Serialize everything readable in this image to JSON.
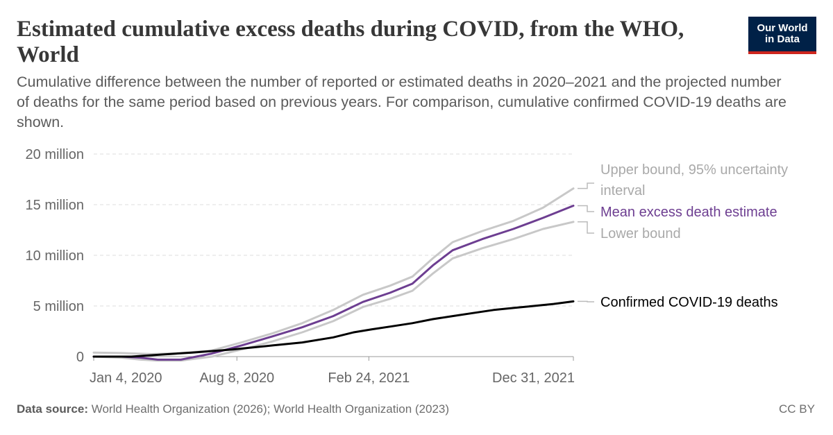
{
  "header": {
    "title": "Estimated cumulative excess deaths during COVID, from the WHO, World",
    "subtitle": "Cumulative difference between the number of reported or estimated deaths in 2020–2021 and the projected number of deaths for the same period based on previous years. For comparison, cumulative confirmed COVID-19 deaths are shown.",
    "logo_text": "Our World\nin Data"
  },
  "footer": {
    "source_label": "Data source:",
    "source_text": "World Health Organization (2026); World Health Organization (2023)",
    "license": "CC BY"
  },
  "colors": {
    "mean": "#6d3e91",
    "bounds": "#c8c8c8",
    "confirmed": "#000000",
    "grid": "#dddddd",
    "axis_text": "#666666"
  },
  "chart_data": {
    "type": "line",
    "x_axis": {
      "type": "date",
      "range": [
        "2020-01-04",
        "2021-12-31"
      ],
      "ticks": [
        {
          "date": "2020-01-04",
          "label": "Jan 4, 2020"
        },
        {
          "date": "2020-08-08",
          "label": "Aug 8, 2020"
        },
        {
          "date": "2021-02-24",
          "label": "Feb 24, 2021"
        },
        {
          "date": "2021-12-31",
          "label": "Dec 31, 2021"
        }
      ]
    },
    "y_axis": {
      "range": [
        0,
        20000000
      ],
      "ticks": [
        {
          "value": 0,
          "label": "0"
        },
        {
          "value": 5000000,
          "label": "5 million"
        },
        {
          "value": 10000000,
          "label": "10 million"
        },
        {
          "value": 15000000,
          "label": "15 million"
        },
        {
          "value": 20000000,
          "label": "20 million"
        }
      ],
      "grid": true
    },
    "series": [
      {
        "name": "Upper bound, 95% uncertainty interval",
        "color_key": "bounds",
        "points": [
          [
            "2020-01-04",
            400000
          ],
          [
            "2020-02-15",
            350000
          ],
          [
            "2020-04-01",
            250000
          ],
          [
            "2020-05-15",
            350000
          ],
          [
            "2020-07-01",
            600000
          ],
          [
            "2020-08-15",
            1400000
          ],
          [
            "2020-10-01",
            2300000
          ],
          [
            "2020-11-15",
            3300000
          ],
          [
            "2021-01-01",
            4600000
          ],
          [
            "2021-02-15",
            6100000
          ],
          [
            "2021-03-28",
            7000000
          ],
          [
            "2021-05-01",
            7900000
          ],
          [
            "2021-06-01",
            9700000
          ],
          [
            "2021-07-01",
            11300000
          ],
          [
            "2021-08-15",
            12400000
          ],
          [
            "2021-10-01",
            13400000
          ],
          [
            "2021-11-15",
            14700000
          ],
          [
            "2021-12-31",
            16600000
          ]
        ]
      },
      {
        "name": "Mean excess death estimate",
        "color_key": "mean",
        "points": [
          [
            "2020-01-04",
            0
          ],
          [
            "2020-02-15",
            0
          ],
          [
            "2020-03-15",
            -100000
          ],
          [
            "2020-04-10",
            -300000
          ],
          [
            "2020-05-15",
            -300000
          ],
          [
            "2020-07-01",
            300000
          ],
          [
            "2020-08-15",
            1100000
          ],
          [
            "2020-10-01",
            2000000
          ],
          [
            "2020-11-15",
            2900000
          ],
          [
            "2021-01-01",
            4000000
          ],
          [
            "2021-02-15",
            5400000
          ],
          [
            "2021-03-28",
            6300000
          ],
          [
            "2021-05-01",
            7200000
          ],
          [
            "2021-06-01",
            9000000
          ],
          [
            "2021-07-01",
            10500000
          ],
          [
            "2021-08-15",
            11600000
          ],
          [
            "2021-10-01",
            12600000
          ],
          [
            "2021-11-15",
            13700000
          ],
          [
            "2021-12-31",
            14900000
          ]
        ]
      },
      {
        "name": "Lower bound",
        "color_key": "bounds",
        "points": [
          [
            "2020-01-04",
            0
          ],
          [
            "2020-02-15",
            -100000
          ],
          [
            "2020-03-15",
            -300000
          ],
          [
            "2020-04-10",
            -400000
          ],
          [
            "2020-05-15",
            -400000
          ],
          [
            "2020-07-01",
            0
          ],
          [
            "2020-08-15",
            700000
          ],
          [
            "2020-10-01",
            1500000
          ],
          [
            "2020-11-15",
            2400000
          ],
          [
            "2021-01-01",
            3500000
          ],
          [
            "2021-02-15",
            4900000
          ],
          [
            "2021-03-28",
            5700000
          ],
          [
            "2021-05-01",
            6500000
          ],
          [
            "2021-06-01",
            8200000
          ],
          [
            "2021-07-01",
            9700000
          ],
          [
            "2021-08-15",
            10700000
          ],
          [
            "2021-10-01",
            11600000
          ],
          [
            "2021-11-15",
            12600000
          ],
          [
            "2021-12-31",
            13300000
          ]
        ]
      },
      {
        "name": "Confirmed COVID-19 deaths",
        "color_key": "confirmed",
        "points": [
          [
            "2020-01-04",
            0
          ],
          [
            "2020-03-01",
            0
          ],
          [
            "2020-04-15",
            200000
          ],
          [
            "2020-06-01",
            400000
          ],
          [
            "2020-08-01",
            700000
          ],
          [
            "2020-10-01",
            1100000
          ],
          [
            "2020-11-15",
            1400000
          ],
          [
            "2021-01-01",
            1900000
          ],
          [
            "2021-02-01",
            2400000
          ],
          [
            "2021-03-01",
            2700000
          ],
          [
            "2021-04-01",
            3000000
          ],
          [
            "2021-05-01",
            3300000
          ],
          [
            "2021-06-01",
            3700000
          ],
          [
            "2021-07-01",
            4000000
          ],
          [
            "2021-08-01",
            4300000
          ],
          [
            "2021-09-01",
            4600000
          ],
          [
            "2021-10-01",
            4800000
          ],
          [
            "2021-11-01",
            5000000
          ],
          [
            "2021-12-01",
            5200000
          ],
          [
            "2021-12-31",
            5450000
          ]
        ]
      }
    ]
  }
}
